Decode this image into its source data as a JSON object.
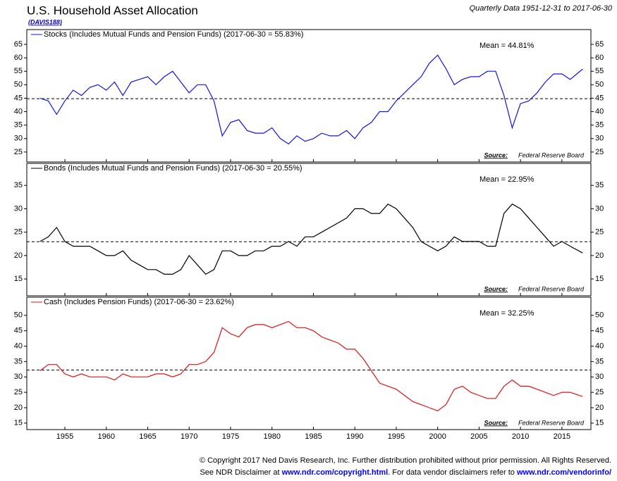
{
  "header": {
    "title": "U.S. Household Asset Allocation",
    "code": "(DAVIS188)",
    "subtitle": "Quarterly Data 1951-12-31 to 2017-06-30"
  },
  "chart_data": [
    {
      "type": "line",
      "xlim": [
        1950.4,
        2018.5
      ],
      "xticks": [
        1955,
        1960,
        1965,
        1970,
        1975,
        1980,
        1985,
        1990,
        1995,
        2000,
        2005,
        2010,
        2015
      ],
      "ylim": [
        21.3,
        70.5
      ],
      "yticks": [
        25,
        30,
        35,
        40,
        45,
        50,
        55,
        60,
        65
      ],
      "mean": 44.81,
      "mean_label": "Mean = 44.81%",
      "source_label": "Source:",
      "source": "Federal Reserve Board",
      "x": [
        1952,
        1953,
        1954,
        1955,
        1956,
        1957,
        1958,
        1959,
        1960,
        1961,
        1962,
        1963,
        1964,
        1965,
        1966,
        1967,
        1968,
        1969,
        1970,
        1971,
        1972,
        1973,
        1974,
        1975,
        1976,
        1977,
        1978,
        1979,
        1980,
        1981,
        1982,
        1983,
        1984,
        1985,
        1986,
        1987,
        1988,
        1989,
        1990,
        1991,
        1992,
        1993,
        1994,
        1995,
        1996,
        1997,
        1998,
        1999,
        2000,
        2001,
        2002,
        2003,
        2004,
        2005,
        2006,
        2007,
        2008,
        2009,
        2010,
        2011,
        2012,
        2013,
        2014,
        2015,
        2016,
        2017.5
      ],
      "series": [
        {
          "name": "Stocks (Includes Mutual Funds and Pension Funds) (2017-06-30 = 55.83%)",
          "color": "#1414e6",
          "values": [
            45,
            44,
            39,
            44,
            48,
            46,
            49,
            50,
            48,
            51,
            46,
            51,
            52,
            53,
            50,
            53,
            55,
            51,
            47,
            50,
            50,
            44,
            31,
            36,
            37,
            33,
            32,
            32,
            34,
            30,
            28,
            31,
            29,
            30,
            32,
            31,
            31,
            33,
            30,
            34,
            36,
            40,
            40,
            44,
            47,
            50,
            53,
            58,
            61,
            56,
            50,
            52,
            53,
            53,
            55,
            55,
            46,
            34,
            43,
            44,
            47,
            51,
            54,
            54,
            52,
            55.83
          ]
        }
      ]
    },
    {
      "type": "line",
      "xlim": [
        1950.4,
        2018.5
      ],
      "xticks": [
        1955,
        1960,
        1965,
        1970,
        1975,
        1980,
        1985,
        1990,
        1995,
        2000,
        2005,
        2010,
        2015
      ],
      "ylim": [
        11.4,
        39.7
      ],
      "yticks": [
        15,
        20,
        25,
        30,
        35
      ],
      "mean": 22.95,
      "mean_label": "Mean = 22.95%",
      "source_label": "Source:",
      "source": "Federal Reserve Board",
      "x": [
        1952,
        1953,
        1954,
        1955,
        1956,
        1957,
        1958,
        1959,
        1960,
        1961,
        1962,
        1963,
        1964,
        1965,
        1966,
        1967,
        1968,
        1969,
        1970,
        1971,
        1972,
        1973,
        1974,
        1975,
        1976,
        1977,
        1978,
        1979,
        1980,
        1981,
        1982,
        1983,
        1984,
        1985,
        1986,
        1987,
        1988,
        1989,
        1990,
        1991,
        1992,
        1993,
        1994,
        1995,
        1996,
        1997,
        1998,
        1999,
        2000,
        2001,
        2002,
        2003,
        2004,
        2005,
        2006,
        2007,
        2008,
        2009,
        2010,
        2011,
        2012,
        2013,
        2014,
        2015,
        2016,
        2017.5
      ],
      "series": [
        {
          "name": "Bonds (Includes Mutual Funds and Pension Funds) (2017-06-30 = 20.55%)",
          "color": "#000000",
          "values": [
            23,
            24,
            26,
            23,
            22,
            22,
            22,
            21,
            20,
            20,
            21,
            19,
            18,
            17,
            17,
            16,
            16,
            17,
            20,
            18,
            16,
            17,
            21,
            21,
            20,
            20,
            21,
            21,
            22,
            22,
            23,
            22,
            24,
            24,
            25,
            26,
            27,
            28,
            30,
            30,
            29,
            29,
            31,
            30,
            28,
            26,
            23,
            22,
            21,
            22,
            24,
            23,
            23,
            23,
            22,
            22,
            29,
            31,
            30,
            28,
            26,
            24,
            22,
            23,
            22,
            20.55
          ]
        }
      ]
    },
    {
      "type": "line",
      "xlim": [
        1950.4,
        2018.5
      ],
      "xticks": [
        1955,
        1960,
        1965,
        1970,
        1975,
        1980,
        1985,
        1990,
        1995,
        2000,
        2005,
        2010,
        2015
      ],
      "ylim": [
        12.9,
        55.9
      ],
      "yticks": [
        15,
        20,
        25,
        30,
        35,
        40,
        45,
        50
      ],
      "mean": 32.25,
      "mean_label": "Mean = 32.25%",
      "source_label": "Source:",
      "source": "Federal Reserve Board",
      "x": [
        1952,
        1953,
        1954,
        1955,
        1956,
        1957,
        1958,
        1959,
        1960,
        1961,
        1962,
        1963,
        1964,
        1965,
        1966,
        1967,
        1968,
        1969,
        1970,
        1971,
        1972,
        1973,
        1974,
        1975,
        1976,
        1977,
        1978,
        1979,
        1980,
        1981,
        1982,
        1983,
        1984,
        1985,
        1986,
        1987,
        1988,
        1989,
        1990,
        1991,
        1992,
        1993,
        1994,
        1995,
        1996,
        1997,
        1998,
        1999,
        2000,
        2001,
        2002,
        2003,
        2004,
        2005,
        2006,
        2007,
        2008,
        2009,
        2010,
        2011,
        2012,
        2013,
        2014,
        2015,
        2016,
        2017.5
      ],
      "series": [
        {
          "name": "Cash (Includes Pension Funds) (2017-06-30 = 23.62%)",
          "color": "#e01010",
          "values": [
            32,
            34,
            34,
            31,
            30,
            31,
            30,
            30,
            30,
            29,
            31,
            30,
            30,
            30,
            31,
            31,
            30,
            31,
            34,
            34,
            35,
            38,
            46,
            44,
            43,
            46,
            47,
            47,
            46,
            47,
            48,
            46,
            46,
            45,
            43,
            42,
            41,
            39,
            39,
            36,
            32,
            28,
            27,
            26,
            24,
            22,
            21,
            20,
            19,
            21,
            26,
            27,
            25,
            24,
            23,
            23,
            27,
            29,
            27,
            27,
            26,
            25,
            24,
            25,
            25,
            23.62
          ]
        }
      ]
    }
  ],
  "footer": {
    "line1": "© Copyright 2017 Ned Davis Research, Inc. Further distribution prohibited without prior permission. All Rights Reserved.",
    "line2_a": "See NDR Disclaimer at ",
    "link1": "www.ndr.com/copyright.html",
    "line2_b": ". For data vendor disclaimers refer to ",
    "link2": "www.ndr.com/vendorinfo/"
  }
}
